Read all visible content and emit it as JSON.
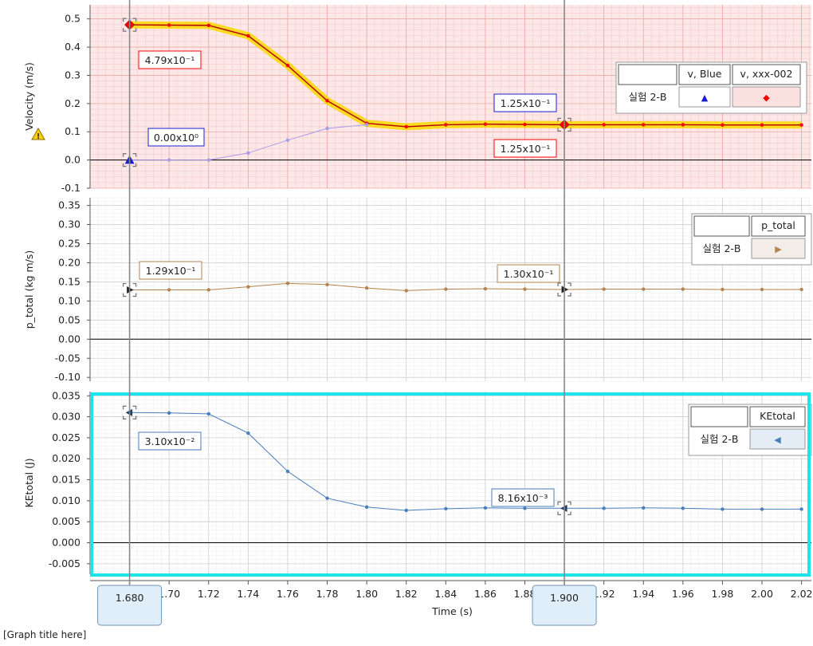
{
  "graph_title": "[Graph title here]",
  "time_axis": {
    "label": "Time (s)",
    "ticks": [
      "1.68",
      "1.70",
      "1.72",
      "1.74",
      "1.76",
      "1.78",
      "1.80",
      "1.82",
      "1.84",
      "1.86",
      "1.88",
      "1.90",
      "1.92",
      "1.94",
      "1.96",
      "1.98",
      "2.00",
      "2.02"
    ],
    "tick_values": [
      1.68,
      1.7,
      1.72,
      1.74,
      1.76,
      1.78,
      1.8,
      1.82,
      1.84,
      1.86,
      1.88,
      1.9,
      1.92,
      1.94,
      1.96,
      1.98,
      2.0,
      2.02
    ],
    "range": [
      1.66,
      2.025
    ]
  },
  "cursors": [
    {
      "time": 1.68,
      "label": "1.680"
    },
    {
      "time": 1.9,
      "label": "1.900"
    }
  ],
  "colors": {
    "velocity_bg": "#fde8e8",
    "velocity_grid": "#f3c4c4",
    "grid": "#dddddd",
    "series_red": "#ff0000",
    "series_red_highlight": "#ffd700",
    "series_blue_triangle": "#1b1bd6",
    "series_blue_line": "#a99be8",
    "series_brown": "#b5834e",
    "series_steel": "#4a7fbd",
    "selection": "#1de4ea",
    "cursor_line": "#888888",
    "cursor_box": "#dfeef8"
  },
  "chart_data": [
    {
      "type": "line",
      "ylabel": "Velocity (m/s)",
      "warning_icon": "warning-triangle-icon",
      "ylim": [
        -0.1,
        0.55
      ],
      "yticks": [
        0.5,
        0.4,
        0.3,
        0.2,
        0.1,
        0.0,
        -0.1
      ],
      "ytick_labels": [
        "0.5",
        "0.4",
        "0.3",
        "0.2",
        "0.1",
        "0.0",
        "-0.1"
      ],
      "x": [
        1.68,
        1.7,
        1.72,
        1.74,
        1.76,
        1.78,
        1.8,
        1.82,
        1.84,
        1.86,
        1.88,
        1.9,
        1.92,
        1.94,
        1.96,
        1.98,
        2.0,
        2.02
      ],
      "series": [
        {
          "name": "v, xxx-002",
          "marker": "diamond",
          "color": "#ff0000",
          "values": [
            0.479,
            0.478,
            0.477,
            0.44,
            0.335,
            0.21,
            0.13,
            0.118,
            0.125,
            0.127,
            0.126,
            0.125,
            0.125,
            0.125,
            0.125,
            0.124,
            0.124,
            0.124
          ]
        },
        {
          "name": "v, Blue",
          "marker": "triangle-up",
          "color": "#1b1bd6",
          "values": [
            0.0,
            0.0,
            0.0,
            0.025,
            0.07,
            0.112,
            0.125,
            null,
            null,
            null,
            null,
            null,
            null,
            null,
            null,
            null,
            null,
            null
          ]
        }
      ],
      "legend": {
        "headers": [
          "",
          "v, Blue",
          "v, xxx-002"
        ],
        "row_label": "실험 2-B",
        "symbols": [
          "▲",
          "◆"
        ]
      },
      "data_labels": [
        {
          "text": "4.79x10⁻¹",
          "time": 1.68,
          "value": 0.479,
          "color": "#ff0000"
        },
        {
          "text": "0.00x10⁰",
          "time": 1.68,
          "value": 0.0,
          "color": "#1b1bd6"
        },
        {
          "text": "1.25x10⁻¹",
          "time": 1.9,
          "value": 0.125,
          "color": "#1b1bd6"
        },
        {
          "text": "1.25x10⁻¹",
          "time": 1.9,
          "value": 0.125,
          "color": "#ff0000"
        }
      ]
    },
    {
      "type": "line",
      "ylabel": "p_total (kg m/s)",
      "ylim": [
        -0.11,
        0.37
      ],
      "yticks": [
        0.35,
        0.3,
        0.25,
        0.2,
        0.15,
        0.1,
        0.05,
        0.0,
        -0.05,
        -0.1
      ],
      "ytick_labels": [
        "0.35",
        "0.30",
        "0.25",
        "0.20",
        "0.15",
        "0.10",
        "0.05",
        "0.00",
        "-0.05",
        "-0.10"
      ],
      "x": [
        1.68,
        1.7,
        1.72,
        1.74,
        1.76,
        1.78,
        1.8,
        1.82,
        1.84,
        1.86,
        1.88,
        1.9,
        1.92,
        1.94,
        1.96,
        1.98,
        2.0,
        2.02
      ],
      "series": [
        {
          "name": "p_total",
          "marker": "triangle-right",
          "color": "#b5834e",
          "values": [
            0.129,
            0.129,
            0.129,
            0.137,
            0.146,
            0.143,
            0.134,
            0.127,
            0.131,
            0.132,
            0.131,
            0.13,
            0.131,
            0.131,
            0.131,
            0.13,
            0.13,
            0.13
          ]
        }
      ],
      "legend": {
        "headers": [
          "",
          "p_total"
        ],
        "row_label": "실험 2-B",
        "symbols": [
          "▶"
        ]
      },
      "data_labels": [
        {
          "text": "1.29x10⁻¹",
          "time": 1.68,
          "value": 0.129,
          "color": "#b5834e"
        },
        {
          "text": "1.30x10⁻¹",
          "time": 1.9,
          "value": 0.13,
          "color": "#b5834e"
        }
      ]
    },
    {
      "type": "line",
      "ylabel": "KEtotal (J)",
      "selected": true,
      "ylim": [
        -0.0075,
        0.036
      ],
      "yticks": [
        0.035,
        0.03,
        0.025,
        0.02,
        0.015,
        0.01,
        0.005,
        0.0,
        -0.005
      ],
      "ytick_labels": [
        "0.035",
        "0.030",
        "0.025",
        "0.020",
        "0.015",
        "0.010",
        "0.005",
        "0.000",
        "-0.005"
      ],
      "x": [
        1.68,
        1.7,
        1.72,
        1.74,
        1.76,
        1.78,
        1.8,
        1.82,
        1.84,
        1.86,
        1.88,
        1.9,
        1.92,
        1.94,
        1.96,
        1.98,
        2.0,
        2.02
      ],
      "series": [
        {
          "name": "KEtotal",
          "marker": "triangle-left",
          "color": "#4a7fbd",
          "values": [
            0.031,
            0.0309,
            0.0307,
            0.0261,
            0.017,
            0.0106,
            0.0085,
            0.0077,
            0.0081,
            0.0083,
            0.0082,
            0.0082,
            0.0082,
            0.0083,
            0.0082,
            0.008,
            0.008,
            0.008
          ]
        }
      ],
      "legend": {
        "headers": [
          "",
          "KEtotal"
        ],
        "row_label": "실험 2-B",
        "symbols": [
          "◀"
        ]
      },
      "data_labels": [
        {
          "text": "3.10x10⁻²",
          "time": 1.68,
          "value": 0.031,
          "color": "#4a7fbd"
        },
        {
          "text": "8.16x10⁻³",
          "time": 1.9,
          "value": 0.00816,
          "color": "#4a7fbd"
        }
      ]
    }
  ]
}
